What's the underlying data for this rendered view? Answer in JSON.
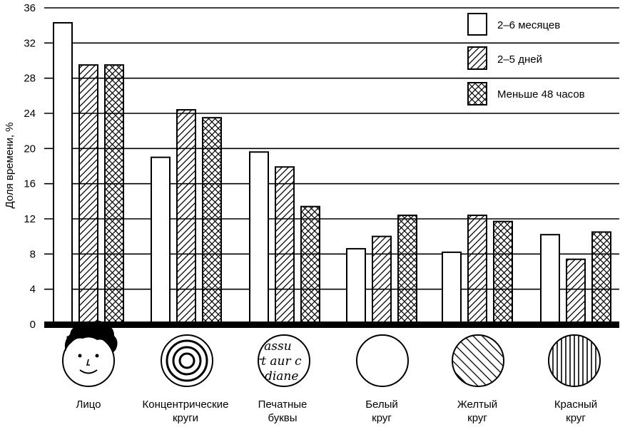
{
  "chart_data": {
    "type": "bar",
    "ylabel": "Доля времени, %",
    "ylim": [
      0,
      36
    ],
    "yticks": [
      "0",
      "4",
      "8",
      "12",
      "16",
      "20",
      "24",
      "28",
      "32",
      "36"
    ],
    "grid": true,
    "legend_position": "top-right",
    "categories": [
      {
        "lines": [
          "Лицо"
        ],
        "icon": "face-icon"
      },
      {
        "lines": [
          "Концентрические",
          "круги"
        ],
        "icon": "concentric-circles-icon"
      },
      {
        "lines": [
          "Печатные",
          "буквы"
        ],
        "icon": "printed-letters-icon"
      },
      {
        "lines": [
          "Белый",
          "круг"
        ],
        "icon": "white-circle-icon"
      },
      {
        "lines": [
          "Желтый",
          "круг"
        ],
        "icon": "yellow-circle-icon"
      },
      {
        "lines": [
          "Красный",
          "круг"
        ],
        "icon": "red-circle-icon"
      }
    ],
    "series": [
      {
        "name": "2–6 месяцев",
        "pattern": "plain",
        "values": [
          34.3,
          19.0,
          19.6,
          8.6,
          8.2,
          10.2
        ]
      },
      {
        "name": "2–5 дней",
        "pattern": "diagonal",
        "values": [
          29.5,
          24.4,
          17.9,
          10.0,
          12.4,
          7.4
        ]
      },
      {
        "name": "Меньше 48 часов",
        "pattern": "crosshatch",
        "values": [
          29.5,
          23.5,
          13.4,
          12.4,
          11.7,
          10.5
        ]
      }
    ],
    "icon_text": {
      "printed_letters": [
        "s assu",
        "rt aur c",
        "ndiane"
      ]
    }
  }
}
